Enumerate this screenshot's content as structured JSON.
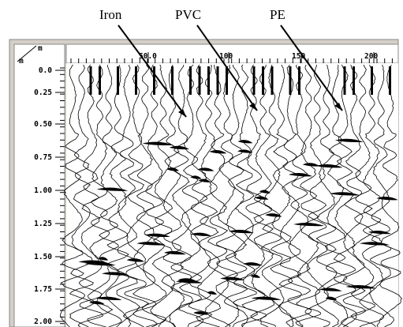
{
  "annotations": [
    "Iron",
    "PVC",
    "PE"
  ],
  "axis": {
    "x_unit": "m",
    "y_unit": "m",
    "x_ticks": [
      "50.0",
      "100",
      "150",
      "200"
    ],
    "y_ticks": [
      "0.0",
      "0.25",
      "0.50",
      "0.75",
      "1.00",
      "1.25",
      "1.50",
      "1.75",
      "2.00"
    ]
  }
}
